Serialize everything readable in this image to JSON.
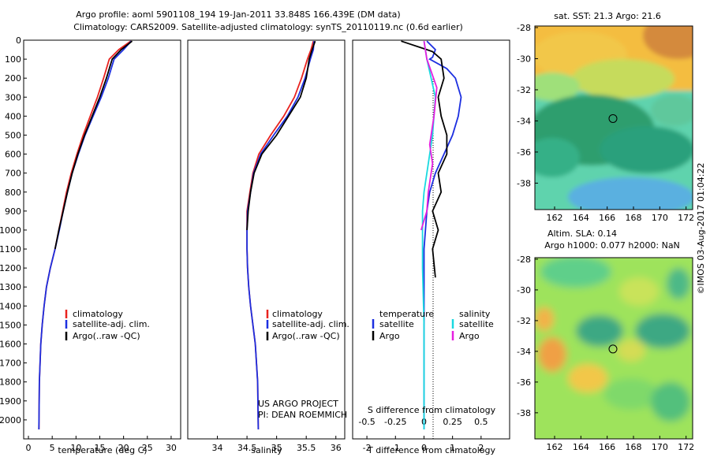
{
  "header": {
    "line1": "Argo profile: aoml 5901108_194 19-Jan-2011 33.848S 166.439E (DM data)",
    "line2": "Climatology: CARS2009. Satellite-adjusted climatology: synTS_20110119.nc (0.6d earlier)"
  },
  "legends": {
    "profiles": [
      "climatology",
      "satellite-adj. clim.",
      "Argo(..raw -QC)"
    ],
    "diff_temperature_title": "temperature",
    "diff_salinity_title": "salinity",
    "diff_items": [
      "satellite",
      "Argo"
    ]
  },
  "credits": {
    "project": "US ARGO PROJECT",
    "pi": "PI: DEAN ROEMMICH",
    "timestamp": "©IMOS 03-Aug-2017 01:04:22"
  },
  "maps": {
    "sst_title": "sat. SST: 21.3 Argo: 21.6",
    "sla_title1": "Altim. SLA: 0.14",
    "sla_title2": "Argo h1000: 0.077 h2000: NaN"
  },
  "colors": {
    "climatology": "#e8231f",
    "satellite": "#1c2fe0",
    "argo": "#000000",
    "sal_satellite": "#19d9e0",
    "sal_argo": "#e61ee0"
  },
  "chart_data": [
    {
      "type": "line",
      "name": "temperature-profile",
      "xlabel": "temperature (deg C)",
      "ylabel": "",
      "xlim": [
        -1,
        32
      ],
      "ylim": [
        2100,
        0
      ],
      "xticks": [
        0,
        5,
        10,
        15,
        20,
        25,
        30
      ],
      "yticks": [
        0,
        100,
        200,
        300,
        400,
        500,
        600,
        700,
        800,
        900,
        1000,
        1100,
        1200,
        1300,
        1400,
        1500,
        1600,
        1700,
        1800,
        1900,
        2000
      ],
      "series": [
        {
          "name": "climatology",
          "color": "#e8231f",
          "x": [
            21.5,
            19.0,
            17.0,
            15.8,
            14.5,
            13.0,
            11.5,
            10.2,
            9.0,
            8.0,
            7.2,
            6.4,
            5.6,
            4.6,
            3.8,
            3.3,
            2.9,
            2.6,
            2.3,
            2.2
          ],
          "y": [
            5,
            50,
            100,
            200,
            300,
            400,
            500,
            600,
            700,
            800,
            900,
            1000,
            1100,
            1200,
            1300,
            1400,
            1500,
            1600,
            1800,
            2050
          ]
        },
        {
          "name": "satellite-adj. clim.",
          "color": "#1c2fe0",
          "x": [
            21.6,
            20.0,
            18.0,
            16.8,
            15.3,
            13.6,
            11.9,
            10.5,
            9.2,
            8.2,
            7.3,
            6.5,
            5.6,
            4.6,
            3.8,
            3.3,
            2.9,
            2.6,
            2.3,
            2.2
          ],
          "y": [
            5,
            50,
            100,
            200,
            300,
            400,
            500,
            600,
            700,
            800,
            900,
            1000,
            1100,
            1200,
            1300,
            1400,
            1500,
            1600,
            1800,
            2050
          ]
        },
        {
          "name": "Argo(..raw -QC)",
          "color": "#000000",
          "x": [
            21.8,
            19.5,
            17.6,
            16.4,
            15.0,
            13.4,
            11.8,
            10.4,
            9.2,
            8.2,
            7.3,
            6.4,
            5.6
          ],
          "y": [
            5,
            50,
            100,
            200,
            300,
            400,
            500,
            600,
            700,
            800,
            900,
            1000,
            1100
          ]
        }
      ]
    },
    {
      "type": "line",
      "name": "salinity-profile",
      "xlabel": "salinity",
      "ylabel": "",
      "xlim": [
        33.5,
        36.15
      ],
      "ylim": [
        2100,
        0
      ],
      "xticks": [
        34,
        34.5,
        35,
        35.5,
        36
      ],
      "series": [
        {
          "name": "climatology",
          "color": "#e8231f",
          "x": [
            35.62,
            35.58,
            35.52,
            35.42,
            35.3,
            35.12,
            34.9,
            34.7,
            34.6,
            34.55,
            34.5,
            34.5,
            34.5,
            34.51,
            34.53,
            34.56,
            34.6,
            34.64,
            34.68,
            34.69
          ],
          "y": [
            5,
            50,
            100,
            200,
            300,
            400,
            500,
            600,
            700,
            800,
            900,
            1000,
            1100,
            1200,
            1300,
            1400,
            1500,
            1600,
            1800,
            2050
          ]
        },
        {
          "name": "satellite-adj. clim.",
          "color": "#1c2fe0",
          "x": [
            35.63,
            35.62,
            35.57,
            35.48,
            35.36,
            35.18,
            34.95,
            34.73,
            34.61,
            34.56,
            34.51,
            34.5,
            34.5,
            34.51,
            34.53,
            34.56,
            34.6,
            34.64,
            34.68,
            34.69
          ],
          "y": [
            5,
            50,
            100,
            200,
            300,
            400,
            500,
            600,
            700,
            800,
            900,
            1000,
            1100,
            1200,
            1300,
            1400,
            1500,
            1600,
            1800,
            2050
          ]
        },
        {
          "name": "Argo(..raw -QC)",
          "color": "#000000",
          "x": [
            35.65,
            35.6,
            35.55,
            35.5,
            35.4,
            35.2,
            35.0,
            34.75,
            34.62,
            34.56,
            34.52,
            34.5
          ],
          "y": [
            5,
            50,
            100,
            200,
            300,
            400,
            500,
            600,
            700,
            800,
            900,
            1000
          ]
        }
      ]
    },
    {
      "type": "line",
      "name": "difference-profile",
      "xlabel": "T difference from climatology",
      "xlabel_top": "S difference from climatology",
      "ylabel": "",
      "xlim": [
        -2.5,
        3
      ],
      "ylim": [
        2100,
        0
      ],
      "xticks": [
        -2,
        -1,
        0,
        1,
        2
      ],
      "sticks_labels": [
        "-0.5",
        "-0.25",
        "0",
        "0.25",
        "0.5"
      ],
      "sticks_pos": [
        -2,
        -1,
        0,
        1,
        2
      ],
      "series": [
        {
          "name": "temperature satellite",
          "color": "#1c2fe0",
          "x": [
            0.1,
            0.4,
            0.3,
            0.2,
            0.8,
            1.1,
            1.3,
            1.2,
            1.0,
            0.7,
            0.4,
            0.2,
            0.1,
            0.0,
            0.0,
            0.0
          ],
          "y": [
            5,
            50,
            90,
            100,
            150,
            200,
            300,
            400,
            500,
            600,
            700,
            800,
            900,
            1100,
            1500,
            2050
          ]
        },
        {
          "name": "temperature Argo",
          "color": "#000000",
          "x": [
            -0.8,
            0.1,
            0.3,
            0.6,
            0.7,
            0.5,
            0.6,
            0.8,
            0.8,
            0.5,
            0.6,
            0.3,
            0.5,
            0.3,
            0.4
          ],
          "y": [
            5,
            50,
            60,
            100,
            200,
            300,
            400,
            500,
            600,
            700,
            800,
            900,
            1000,
            1100,
            1250
          ]
        },
        {
          "name": "salinity satellite",
          "color": "#19d9e0",
          "x": [
            0.0,
            0.1,
            0.25,
            0.4,
            0.35,
            0.3,
            0.2,
            0.1,
            0.0,
            -0.05,
            -0.05,
            -0.05,
            0.0,
            0.0,
            0.0
          ],
          "y": [
            5,
            100,
            200,
            300,
            400,
            500,
            600,
            700,
            800,
            900,
            1000,
            1200,
            1500,
            1800,
            2050
          ]
        },
        {
          "name": "salinity Argo",
          "color": "#e61ee0",
          "x": [
            0.0,
            0.1,
            0.45,
            0.35,
            0.2,
            0.3,
            0.15,
            0.1,
            0.0,
            -0.1
          ],
          "y": [
            5,
            100,
            250,
            400,
            550,
            650,
            800,
            900,
            950,
            1000
          ]
        }
      ]
    },
    {
      "type": "heatmap",
      "name": "sst-map",
      "xlim": [
        160.5,
        172.5
      ],
      "ylim": [
        -39.7,
        -27.9
      ],
      "xticks": [
        162,
        164,
        166,
        168,
        170,
        172
      ],
      "yticks": [
        -28,
        -30,
        -32,
        -34,
        -36,
        -38
      ],
      "marker": {
        "lon": 166.439,
        "lat": -33.848
      }
    },
    {
      "type": "heatmap",
      "name": "sla-map",
      "xlim": [
        160.5,
        172.5
      ],
      "ylim": [
        -39.7,
        -27.9
      ],
      "xticks": [
        162,
        164,
        166,
        168,
        170,
        172
      ],
      "yticks": [
        -28,
        -30,
        -32,
        -34,
        -36,
        -38
      ],
      "marker": {
        "lon": 166.439,
        "lat": -33.848
      }
    }
  ]
}
